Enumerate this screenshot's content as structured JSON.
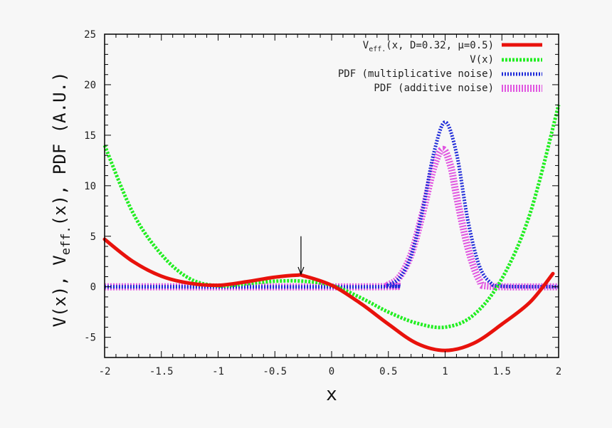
{
  "chart_data": {
    "type": "line",
    "xlabel": "x",
    "ylabel": {
      "part1": "V(x), V",
      "sub": "eff.",
      "part2": "(x), PDF (A.U.)"
    },
    "xlim": [
      -2,
      2
    ],
    "ylim": [
      -7,
      25
    ],
    "x_ticks": [
      -2,
      -1.5,
      -1,
      -0.5,
      0,
      0.5,
      1,
      1.5,
      2
    ],
    "x_tick_labels": [
      "-2",
      "-1.5",
      "-1",
      "-0.5",
      "0",
      "0.5",
      "1",
      "1.5",
      "2"
    ],
    "y_ticks": [
      -5,
      0,
      5,
      10,
      15,
      20,
      25
    ],
    "y_tick_labels": [
      "-5",
      "0",
      "5",
      "10",
      "15",
      "20",
      "25"
    ],
    "grid": false,
    "legend_position": "top-right",
    "series": [
      {
        "name": "Veff.(x, D=0.32, μ=0.5)",
        "name_parts": {
          "main": "V",
          "sub": "eff.",
          "rest": "(x, D=0.32, μ=0.5)"
        },
        "color": "#e8120c",
        "style": "solid",
        "x": [
          -2,
          -1.75,
          -1.5,
          -1.25,
          -1,
          -0.75,
          -0.5,
          -0.3,
          -0.25,
          0,
          0.25,
          0.5,
          0.75,
          1,
          1.25,
          1.5,
          1.75,
          1.95
        ],
        "y": [
          4.7,
          2.5,
          1.05,
          0.35,
          0.15,
          0.5,
          0.95,
          1.15,
          1.1,
          0.15,
          -1.6,
          -3.7,
          -5.6,
          -6.3,
          -5.6,
          -3.7,
          -1.5,
          1.3
        ]
      },
      {
        "name": "V(x)",
        "color": "#22ee22",
        "style": "dotted",
        "x": [
          -2,
          -1.75,
          -1.5,
          -1.25,
          -1,
          -0.75,
          -0.5,
          -0.25,
          0,
          0.25,
          0.5,
          0.75,
          1,
          1.25,
          1.5,
          1.75,
          2
        ],
        "y": [
          14,
          7.3,
          3.2,
          0.8,
          0.1,
          0.3,
          0.55,
          0.55,
          0.15,
          -1.05,
          -2.5,
          -3.6,
          -4.0,
          -2.8,
          0.8,
          7.3,
          18
        ]
      },
      {
        "name": "PDF (multiplicative noise)",
        "color": "#1e2ad8",
        "style": "dotted",
        "x": [
          -2,
          0.4,
          0.5,
          0.6,
          0.7,
          0.8,
          0.9,
          1.0,
          1.1,
          1.2,
          1.3,
          1.4,
          1.5,
          2
        ],
        "y": [
          0,
          0.0,
          0.2,
          0.9,
          3.1,
          7.5,
          13.2,
          16.3,
          13.2,
          6.6,
          2.1,
          0.4,
          0.05,
          0
        ]
      },
      {
        "name": "PDF (additive noise)",
        "color": "#e055e0",
        "style": "dotted",
        "x": [
          -2,
          0.4,
          0.5,
          0.6,
          0.7,
          0.8,
          0.9,
          0.98,
          1.05,
          1.1,
          1.2,
          1.3,
          1.4,
          2
        ],
        "y": [
          0,
          0.0,
          0.2,
          1.0,
          3.2,
          7.2,
          11.8,
          13.6,
          11.9,
          9.0,
          3.9,
          0.7,
          0.05,
          0
        ]
      }
    ],
    "annotation": {
      "type": "arrow",
      "x": -0.27,
      "y_from": 5.0,
      "y_to": 1.25
    }
  }
}
